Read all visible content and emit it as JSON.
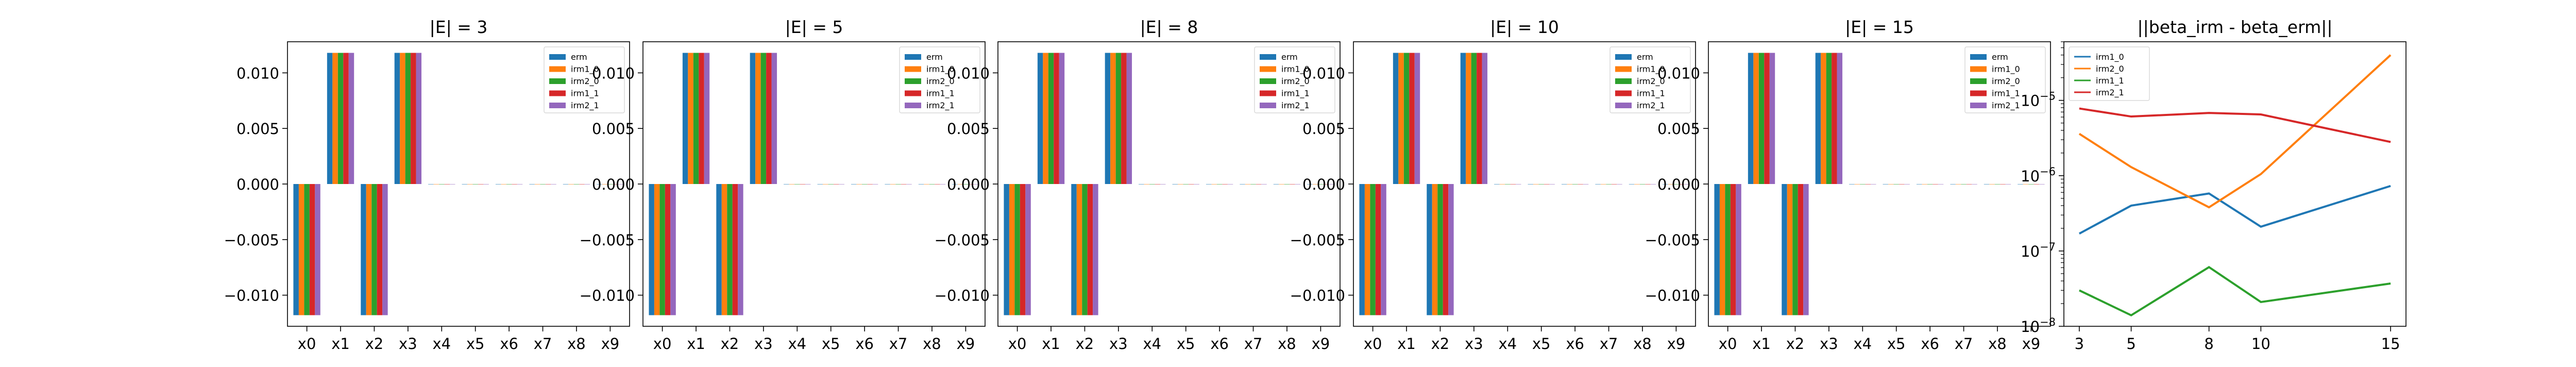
{
  "chart_data": [
    {
      "type": "bar",
      "title": "|E| = 3",
      "categories": [
        "x0",
        "x1",
        "x2",
        "x3",
        "x4",
        "x5",
        "x6",
        "x7",
        "x8",
        "x9"
      ],
      "ylim": [
        -0.0128,
        0.0128
      ],
      "yticks": [
        -0.01,
        -0.005,
        0.0,
        0.005,
        0.01
      ],
      "ytick_labels": [
        "−0.010",
        "−0.005",
        "0.000",
        "0.005",
        "0.010"
      ],
      "legend_position": "top-right",
      "series": [
        {
          "name": "erm",
          "values": [
            -0.0118,
            0.0118,
            -0.0118,
            0.0118,
            0,
            0,
            0,
            0,
            0,
            0
          ]
        },
        {
          "name": "irm1_0",
          "values": [
            -0.0118,
            0.0118,
            -0.0118,
            0.0118,
            0,
            0,
            0,
            0,
            0,
            0
          ]
        },
        {
          "name": "irm2_0",
          "values": [
            -0.0118,
            0.0118,
            -0.0118,
            0.0118,
            0,
            0,
            0,
            0,
            0,
            0
          ]
        },
        {
          "name": "irm1_1",
          "values": [
            -0.0118,
            0.0118,
            -0.0118,
            0.0118,
            0,
            0,
            0,
            0,
            0,
            0
          ]
        },
        {
          "name": "irm2_1",
          "values": [
            -0.0118,
            0.0118,
            -0.0118,
            0.0118,
            0,
            0,
            0,
            0,
            0,
            0
          ]
        }
      ]
    },
    {
      "type": "bar",
      "title": "|E| = 5",
      "categories": [
        "x0",
        "x1",
        "x2",
        "x3",
        "x4",
        "x5",
        "x6",
        "x7",
        "x8",
        "x9"
      ],
      "ylim": [
        -0.0128,
        0.0128
      ],
      "yticks": [
        -0.01,
        -0.005,
        0.0,
        0.005,
        0.01
      ],
      "ytick_labels": [
        "−0.010",
        "−0.005",
        "0.000",
        "0.005",
        "0.010"
      ],
      "legend_position": "top-right",
      "series": [
        {
          "name": "erm",
          "values": [
            -0.0118,
            0.0118,
            -0.0118,
            0.0118,
            0,
            0,
            0,
            0,
            0,
            0
          ]
        },
        {
          "name": "irm1_0",
          "values": [
            -0.0118,
            0.0118,
            -0.0118,
            0.0118,
            0,
            0,
            0,
            0,
            0,
            0
          ]
        },
        {
          "name": "irm2_0",
          "values": [
            -0.0118,
            0.0118,
            -0.0118,
            0.0118,
            0,
            0,
            0,
            0,
            0,
            0
          ]
        },
        {
          "name": "irm1_1",
          "values": [
            -0.0118,
            0.0118,
            -0.0118,
            0.0118,
            0,
            0,
            0,
            0,
            0,
            0
          ]
        },
        {
          "name": "irm2_1",
          "values": [
            -0.0118,
            0.0118,
            -0.0118,
            0.0118,
            0,
            0,
            0,
            0,
            0,
            0
          ]
        }
      ]
    },
    {
      "type": "bar",
      "title": "|E| = 8",
      "categories": [
        "x0",
        "x1",
        "x2",
        "x3",
        "x4",
        "x5",
        "x6",
        "x7",
        "x8",
        "x9"
      ],
      "ylim": [
        -0.0128,
        0.0128
      ],
      "yticks": [
        -0.01,
        -0.005,
        0.0,
        0.005,
        0.01
      ],
      "ytick_labels": [
        "−0.010",
        "−0.005",
        "0.000",
        "0.005",
        "0.010"
      ],
      "legend_position": "top-right",
      "series": [
        {
          "name": "erm",
          "values": [
            -0.0118,
            0.0118,
            -0.0118,
            0.0118,
            0,
            0,
            0,
            0,
            0,
            0
          ]
        },
        {
          "name": "irm1_0",
          "values": [
            -0.0118,
            0.0118,
            -0.0118,
            0.0118,
            0,
            0,
            0,
            0,
            0,
            0
          ]
        },
        {
          "name": "irm2_0",
          "values": [
            -0.0118,
            0.0118,
            -0.0118,
            0.0118,
            0,
            0,
            0,
            0,
            0,
            0
          ]
        },
        {
          "name": "irm1_1",
          "values": [
            -0.0118,
            0.0118,
            -0.0118,
            0.0118,
            0,
            0,
            0,
            0,
            0,
            0
          ]
        },
        {
          "name": "irm2_1",
          "values": [
            -0.0118,
            0.0118,
            -0.0118,
            0.0118,
            0,
            0,
            0,
            0,
            0,
            0
          ]
        }
      ]
    },
    {
      "type": "bar",
      "title": "|E| = 10",
      "categories": [
        "x0",
        "x1",
        "x2",
        "x3",
        "x4",
        "x5",
        "x6",
        "x7",
        "x8",
        "x9"
      ],
      "ylim": [
        -0.0128,
        0.0128
      ],
      "yticks": [
        -0.01,
        -0.005,
        0.0,
        0.005,
        0.01
      ],
      "ytick_labels": [
        "−0.010",
        "−0.005",
        "0.000",
        "0.005",
        "0.010"
      ],
      "legend_position": "top-right",
      "series": [
        {
          "name": "erm",
          "values": [
            -0.0118,
            0.0118,
            -0.0118,
            0.0118,
            0,
            0,
            0,
            0,
            0,
            0
          ]
        },
        {
          "name": "irm1_0",
          "values": [
            -0.0118,
            0.0118,
            -0.0118,
            0.0118,
            0,
            0,
            0,
            0,
            0,
            0
          ]
        },
        {
          "name": "irm2_0",
          "values": [
            -0.0118,
            0.0118,
            -0.0118,
            0.0118,
            0,
            0,
            0,
            0,
            0,
            0
          ]
        },
        {
          "name": "irm1_1",
          "values": [
            -0.0118,
            0.0118,
            -0.0118,
            0.0118,
            0,
            0,
            0,
            0,
            0,
            0
          ]
        },
        {
          "name": "irm2_1",
          "values": [
            -0.0118,
            0.0118,
            -0.0118,
            0.0118,
            0,
            0,
            0,
            0,
            0,
            0
          ]
        }
      ]
    },
    {
      "type": "bar",
      "title": "|E| = 15",
      "categories": [
        "x0",
        "x1",
        "x2",
        "x3",
        "x4",
        "x5",
        "x6",
        "x7",
        "x8",
        "x9"
      ],
      "ylim": [
        -0.0128,
        0.0128
      ],
      "yticks": [
        -0.01,
        -0.005,
        0.0,
        0.005,
        0.01
      ],
      "ytick_labels": [
        "−0.010",
        "−0.005",
        "0.000",
        "0.005",
        "0.010"
      ],
      "legend_position": "top-right",
      "series": [
        {
          "name": "erm",
          "values": [
            -0.0118,
            0.0118,
            -0.0118,
            0.0118,
            0,
            0,
            0,
            0,
            0,
            0
          ]
        },
        {
          "name": "irm1_0",
          "values": [
            -0.0118,
            0.0118,
            -0.0118,
            0.0118,
            0,
            0,
            0,
            0,
            0,
            0
          ]
        },
        {
          "name": "irm2_0",
          "values": [
            -0.0118,
            0.0118,
            -0.0118,
            0.0118,
            0,
            0,
            0,
            0,
            0,
            0
          ]
        },
        {
          "name": "irm1_1",
          "values": [
            -0.0118,
            0.0118,
            -0.0118,
            0.0118,
            0,
            0,
            0,
            0,
            0,
            0
          ]
        },
        {
          "name": "irm2_1",
          "values": [
            -0.0118,
            0.0118,
            -0.0118,
            0.0118,
            0,
            0,
            0,
            0,
            0,
            0
          ]
        }
      ]
    },
    {
      "type": "line",
      "title": "||beta_irm - beta_erm||",
      "x": [
        3,
        5,
        8,
        10,
        15
      ],
      "xticks": [
        "3",
        "5",
        "8",
        "10",
        "15"
      ],
      "yscale": "log",
      "ylim": [
        1e-08,
        6e-05
      ],
      "yticks": [
        1e-08,
        1e-07,
        1e-06,
        1e-05
      ],
      "legend_position": "top-left",
      "series": [
        {
          "name": "irm1_0",
          "values": [
            1.7e-07,
            4e-07,
            5.8e-07,
            2.1e-07,
            7.3e-07
          ]
        },
        {
          "name": "irm2_0",
          "values": [
            3.6e-06,
            1.3e-06,
            3.8e-07,
            1.05e-06,
            4e-05
          ]
        },
        {
          "name": "irm1_1",
          "values": [
            3e-08,
            1.4e-08,
            6.1e-08,
            2.1e-08,
            3.7e-08
          ]
        },
        {
          "name": "irm2_1",
          "values": [
            7.8e-06,
            6.1e-06,
            6.8e-06,
            6.5e-06,
            2.8e-06
          ]
        }
      ]
    }
  ],
  "colors": {
    "erm": "#1f77b4",
    "irm1_0": "#ff7f0e",
    "irm2_0": "#2ca02c",
    "irm1_1": "#d62728",
    "irm2_1": "#9467bd",
    "line_irm1_0": "#1f77b4",
    "line_irm2_0": "#ff7f0e",
    "line_irm1_1": "#2ca02c",
    "line_irm2_1": "#d62728"
  }
}
